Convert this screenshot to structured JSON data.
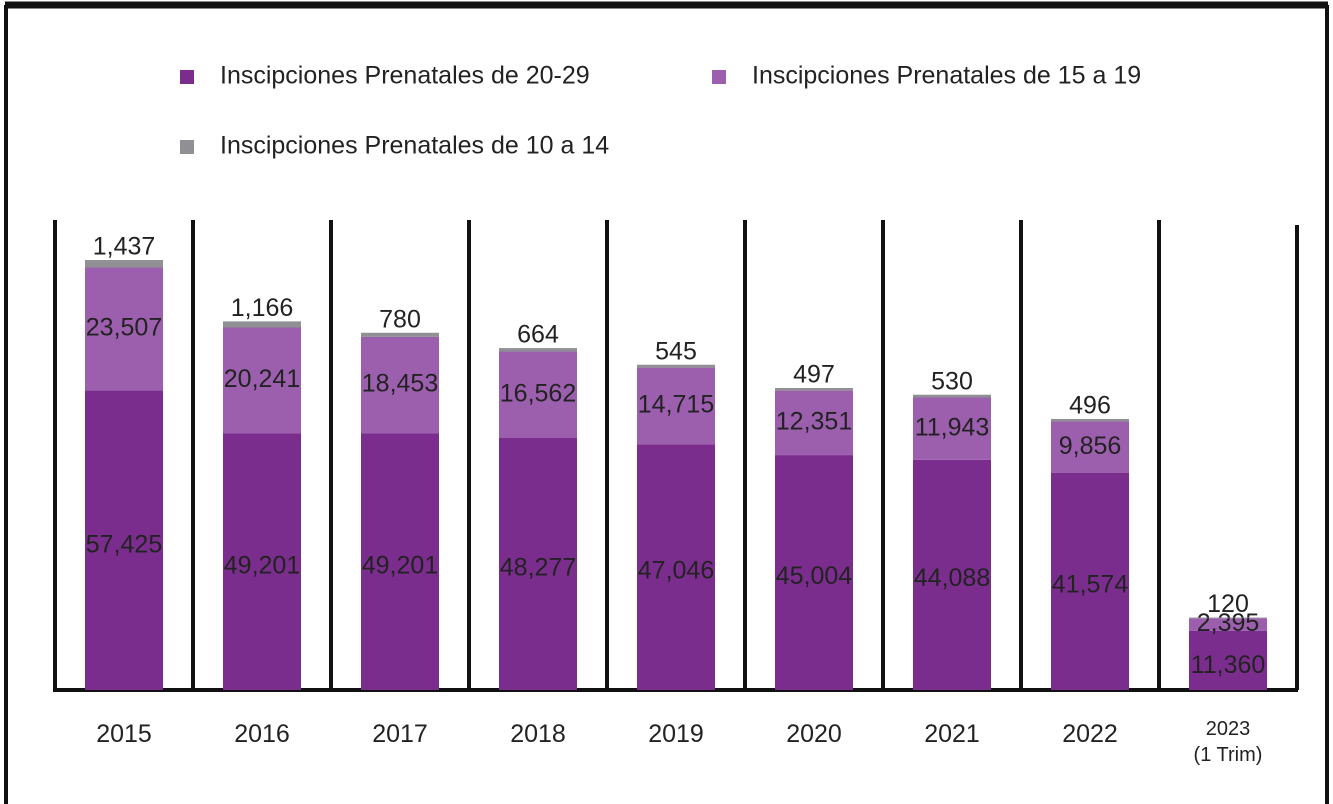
{
  "chart_data": {
    "type": "stacked_bar",
    "categories": [
      "2015",
      "2016",
      "2017",
      "2018",
      "2019",
      "2020",
      "2021",
      "2022",
      "2023\n(1 Trim)"
    ],
    "series": [
      {
        "name": "Inscipciones Prenatales de 20-29",
        "color": "#7b2d8e",
        "values": [
          57425,
          49201,
          49201,
          48277,
          47046,
          45004,
          44088,
          41574,
          11360
        ],
        "value_labels": [
          "57,425",
          "49,201",
          "49,201",
          "48,277",
          "47,046",
          "45,004",
          "44,088",
          "41,574",
          "11,360"
        ]
      },
      {
        "name": "Inscipciones Prenatales de 15 a 19",
        "color": "#9c5fae",
        "values": [
          23507,
          20241,
          18453,
          16562,
          14715,
          12351,
          11943,
          9856,
          2395
        ],
        "value_labels": [
          "23,507",
          "20,241",
          "18,453",
          "16,562",
          "14,715",
          "12,351",
          "11,943",
          "9,856",
          "2,395"
        ]
      },
      {
        "name": "Inscipciones Prenatales de 10 a 14",
        "color": "#8f8f94",
        "values": [
          1437,
          1166,
          780,
          664,
          545,
          497,
          530,
          496,
          120
        ],
        "value_labels": [
          "1,437",
          "1,166",
          "780",
          "664",
          "545",
          "497",
          "530",
          "496",
          "120"
        ]
      }
    ]
  }
}
